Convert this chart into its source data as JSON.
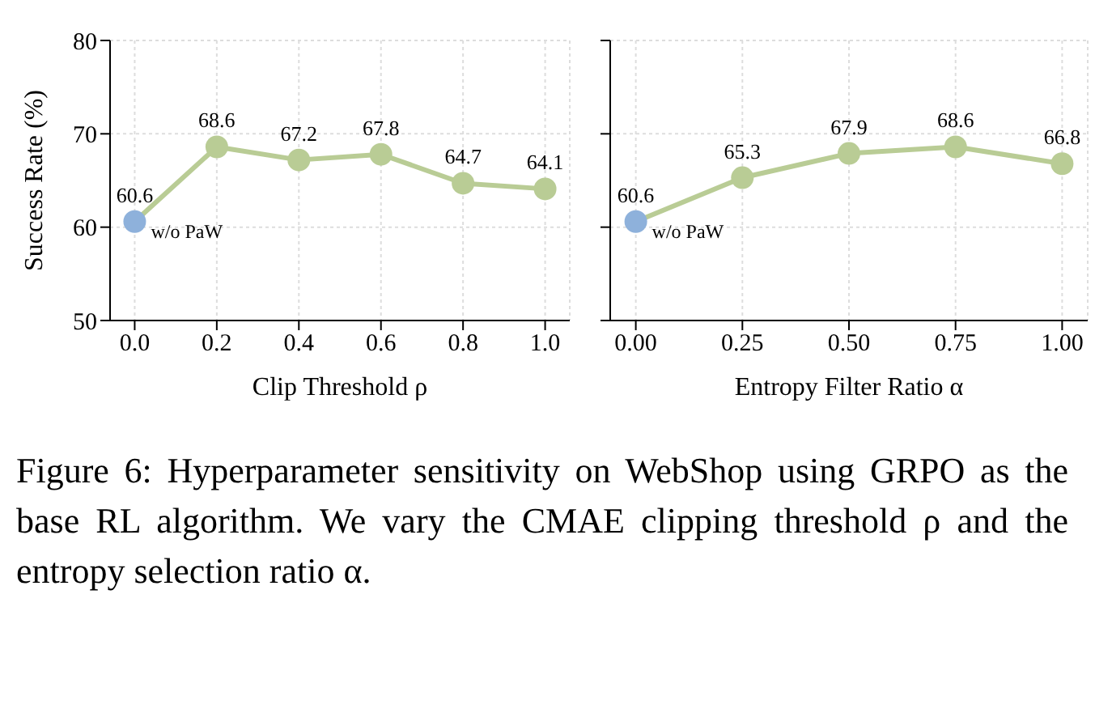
{
  "chart_data": [
    {
      "type": "line",
      "ylabel": "Success Rate (%)",
      "xlabel": "Clip Threshold ρ",
      "x": [
        0,
        0.2,
        0.4,
        0.6,
        0.8,
        1.0
      ],
      "series": [
        {
          "color": "#b9cc95",
          "colors": [
            "#8eb1db",
            "#b9cc95",
            "#b9cc95",
            "#b9cc95",
            "#b9cc95",
            "#b9cc95"
          ],
          "values": [
            60.6,
            68.6,
            67.2,
            67.8,
            64.7,
            64.1
          ]
        }
      ],
      "xlim": [
        -0.06,
        1.06
      ],
      "xticks": [
        {
          "value": 0,
          "label": "0.0"
        },
        {
          "value": 0.2,
          "label": "0.2"
        },
        {
          "value": 0.4,
          "label": "0.4"
        },
        {
          "value": 0.6,
          "label": "0.6"
        },
        {
          "value": 0.8,
          "label": "0.8"
        },
        {
          "value": 1.0,
          "label": "1.0"
        }
      ],
      "ylim": [
        50,
        80
      ],
      "yticks": [
        50,
        60,
        70,
        80
      ],
      "grid": true,
      "legend": false,
      "marker": "circle",
      "data_labels": true,
      "annotations": [
        {
          "text": "w/o PaW",
          "x": 0,
          "y": 60.6
        }
      ]
    },
    {
      "type": "line",
      "xlabel": "Entropy Filter Ratio α",
      "x": [
        0,
        0.25,
        0.5,
        0.75,
        1.0
      ],
      "series": [
        {
          "color": "#b9cc95",
          "colors": [
            "#8eb1db",
            "#b9cc95",
            "#b9cc95",
            "#b9cc95",
            "#b9cc95"
          ],
          "values": [
            60.6,
            65.3,
            67.9,
            68.6,
            66.8
          ]
        }
      ],
      "xlim": [
        -0.06,
        1.06
      ],
      "xticks": [
        {
          "value": 0,
          "label": "0.00"
        },
        {
          "value": 0.25,
          "label": "0.25"
        },
        {
          "value": 0.5,
          "label": "0.50"
        },
        {
          "value": 0.75,
          "label": "0.75"
        },
        {
          "value": 1.0,
          "label": "1.00"
        }
      ],
      "ylim": [
        50,
        80
      ],
      "yticks": [
        50,
        60,
        70,
        80
      ],
      "grid": true,
      "legend": false,
      "marker": "circle",
      "data_labels": true,
      "tick_labels": "x",
      "annotations": [
        {
          "text": "w/o PaW",
          "x": 0,
          "y": 60.6
        },
        "Figure 6: Hyperparameter sensitivity on WebShop using GRPO as the base RL algorithm. We vary the CMAE clipping threshold ρ and the entropy selection ratio α."
      ]
    }
  ]
}
